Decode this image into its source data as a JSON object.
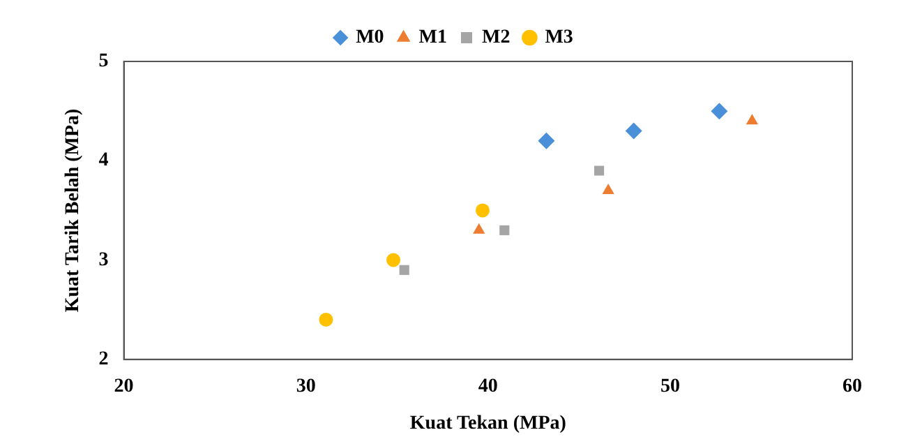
{
  "chart_data": {
    "type": "scatter",
    "xlabel": "Kuat Tekan (MPa)",
    "ylabel": "Kuat Tarik Belah (MPa)",
    "xlim": [
      20,
      60
    ],
    "xticks": [
      20,
      30,
      40,
      50,
      60
    ],
    "ylim": [
      2,
      5
    ],
    "yticks": [
      2,
      3,
      4,
      5
    ],
    "grid": false,
    "legend": "top",
    "series": [
      {
        "name": "M0",
        "color": "#4a90d9",
        "marker": "diamond",
        "x": [
          43.2,
          48.0,
          52.7
        ],
        "values": [
          4.2,
          4.3,
          4.5
        ]
      },
      {
        "name": "M1",
        "color": "#ed7d31",
        "marker": "triangle",
        "x": [
          39.5,
          46.6,
          54.5
        ],
        "values": [
          3.3,
          3.7,
          4.4
        ]
      },
      {
        "name": "M2",
        "color": "#a5a5a5",
        "marker": "square",
        "x": [
          35.4,
          40.9,
          46.1
        ],
        "values": [
          2.9,
          3.3,
          3.9
        ]
      },
      {
        "name": "M3",
        "color": "#ffc000",
        "marker": "circle",
        "x": [
          31.1,
          34.8,
          39.7
        ],
        "values": [
          2.4,
          3.0,
          3.5
        ]
      }
    ]
  }
}
